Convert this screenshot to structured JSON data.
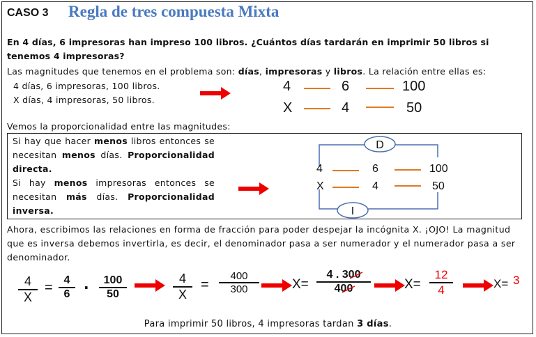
{
  "header": {
    "case_label": "CASO 3",
    "title": "Regla de tres compuesta Mixta"
  },
  "problem": "En 4 días, 6 impresoras han impreso 100 libros. ¿Cuántos días tardarán en imprimir 50 libros si tenemos 4 impresoras?",
  "magnitudes": {
    "intro_prefix": "Las magnitudes que tenemos en el problema son: ",
    "m1": "días",
    "sep1": ", ",
    "m2": "impresoras",
    "sep2": " y ",
    "m3": "libros",
    "intro_suffix": ". La relación entre ellas es:",
    "line1": "4 días, 6 impresoras, 100 libros.",
    "line2": "X días, 4 impresoras, 50 libros."
  },
  "relation_table": {
    "row1": [
      "4",
      "6",
      "100"
    ],
    "row2": [
      "X",
      "4",
      "50"
    ]
  },
  "proportionality": {
    "heading": "Vemos la proporcionalidad entre las magnitudes:",
    "p1_a": "Si hay que hacer ",
    "p1_b": "menos",
    "p1_c": " libros entonces se necesitan ",
    "p1_d": "menos",
    "p1_e": " días. ",
    "p1_f": "Proporcionalidad directa.",
    "p2_a": "Si hay ",
    "p2_b": "menos",
    "p2_c": " impresoras entonces se necesitan ",
    "p2_d": "más",
    "p2_e": " días. ",
    "p2_f": "Proporcionalidad inversa.",
    "diagram": {
      "direct_label": "D",
      "inverse_label": "I",
      "row1": [
        "4",
        "6",
        "100"
      ],
      "row2": [
        "X",
        "4",
        "50"
      ]
    }
  },
  "explanation": "Ahora, escribimos las relaciones en forma de fracción para poder despejar la incógnita X. ¡OJO! La magnitud que es inversa debemos invertirla, es decir, el denominador pasa a ser numerador y el numerador pasa a ser denominador.",
  "equation": {
    "f1_num": "4",
    "f1_den": "X",
    "eq1": "=",
    "f2_num": "4",
    "f2_den": "6",
    "dot": "·",
    "f3_num": "100",
    "f3_den": "50",
    "f4_num": "4",
    "f4_den": "X",
    "eq2": "=",
    "f5_num": "400",
    "f5_den": "300",
    "x_eq": "X=",
    "f6_num_a": "4 . 3",
    "f6_num_b": "00",
    "f6_den_a": "4",
    "f6_den_b": "00",
    "f7_num": "12",
    "f7_den": "4",
    "result_prefix": "X=",
    "result_value": "3"
  },
  "conclusion": {
    "prefix": "Para imprimir 50 libros, 4 impresoras tardan ",
    "answer": "3 días",
    "suffix": "."
  },
  "colors": {
    "title": "#4a7abf",
    "arrow": "#e00000",
    "dash": "#e07a20",
    "diagram_line": "#4a6fb0"
  }
}
